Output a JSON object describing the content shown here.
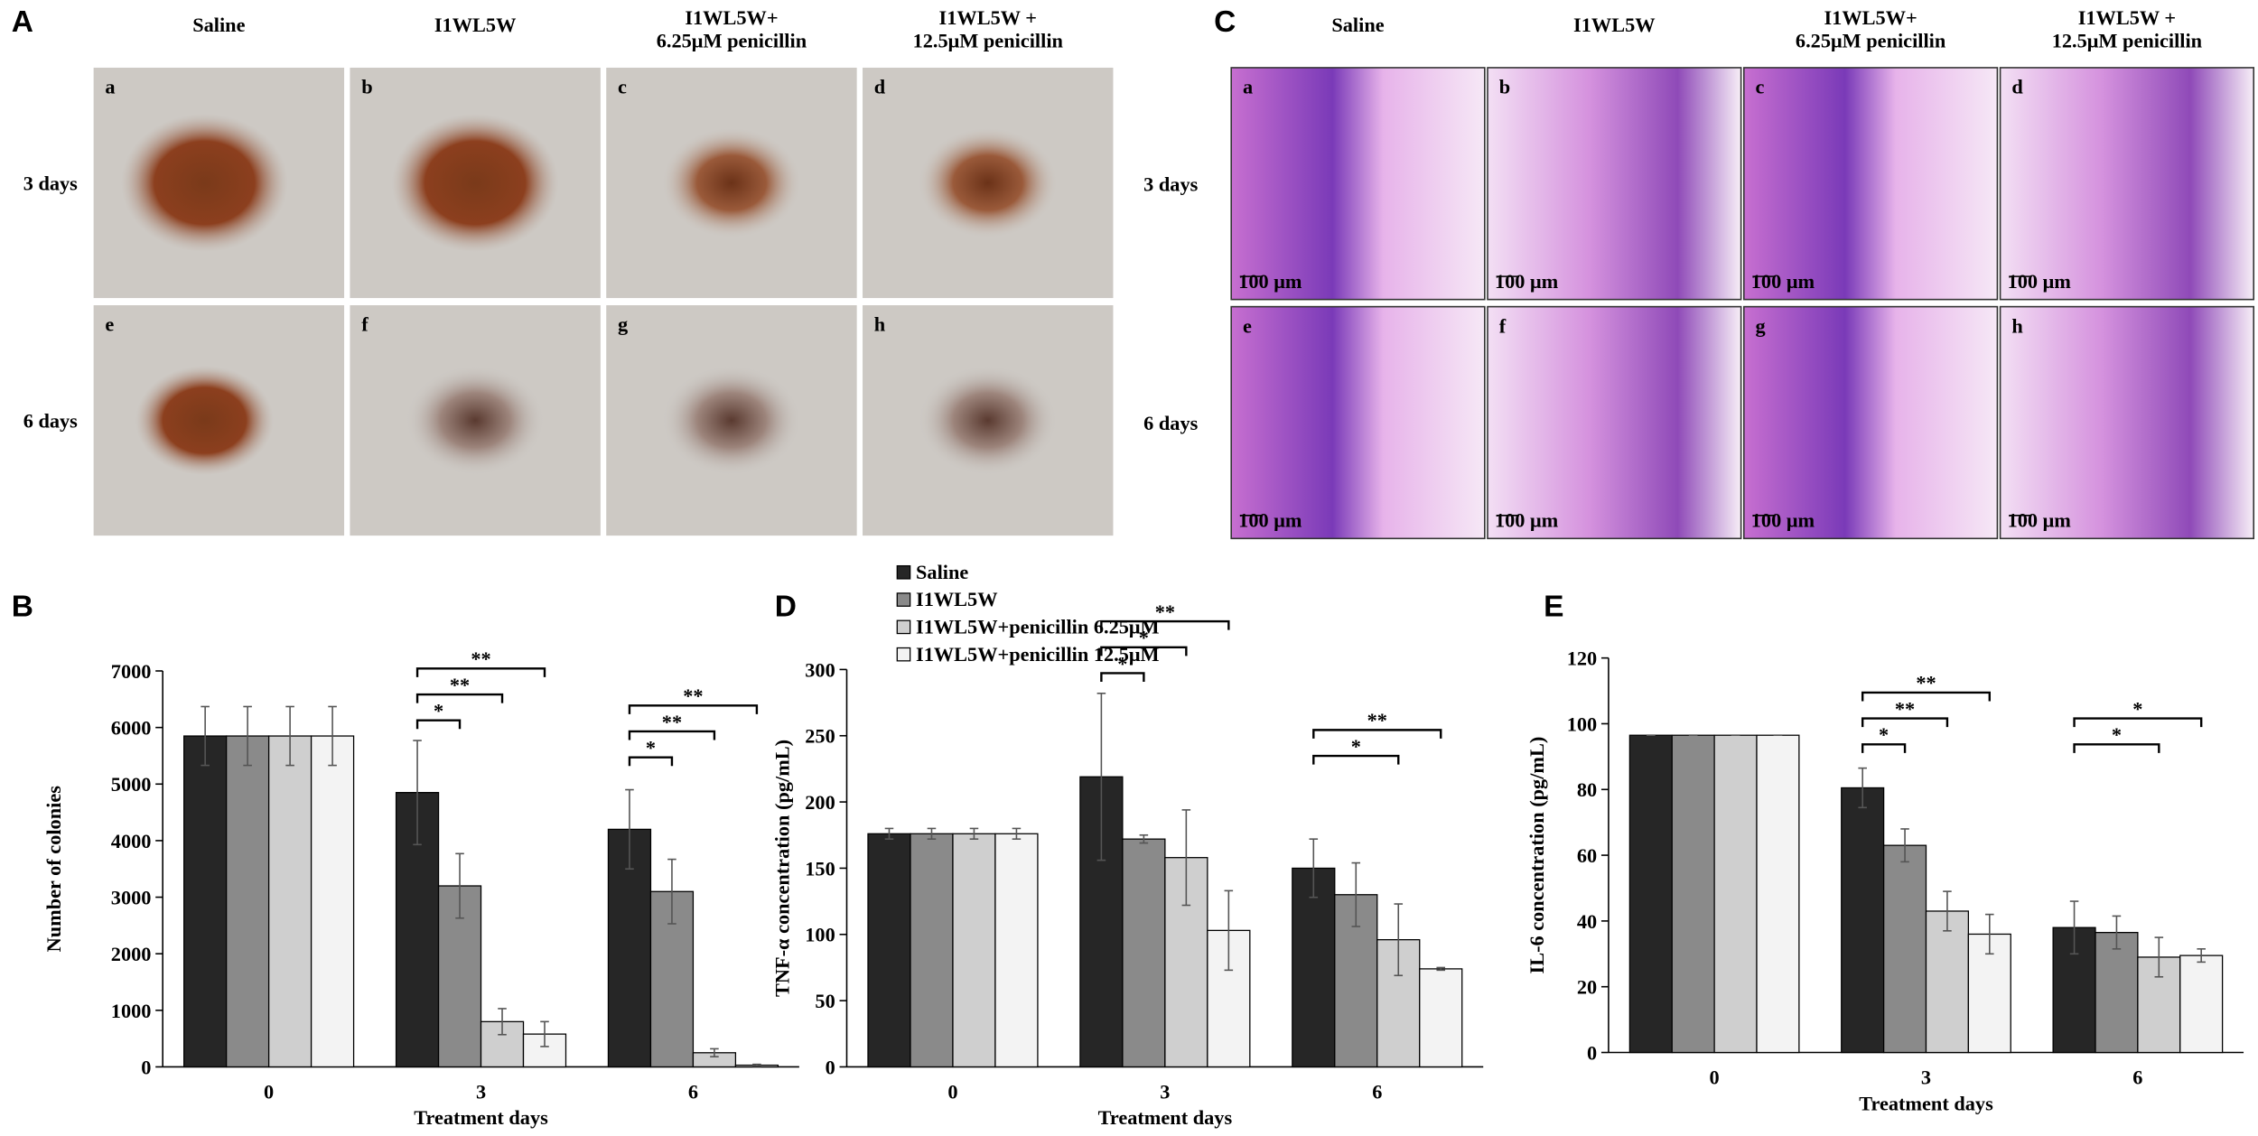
{
  "photo_panels": [
    {
      "label": "A",
      "columns": [
        [
          "Saline"
        ],
        [
          "I1WL5W"
        ],
        [
          "I1WL5W+",
          "6.25μM penicillin"
        ],
        [
          "I1WL5W +",
          "12.5μM penicillin"
        ]
      ],
      "rows": [
        "3 days",
        "6 days"
      ],
      "tiles": [
        "a",
        "b",
        "c",
        "d",
        "e",
        "f",
        "g",
        "h"
      ]
    },
    {
      "label": "C",
      "columns": [
        [
          "Saline"
        ],
        [
          "I1WL5W"
        ],
        [
          "I1WL5W+",
          "6.25μM penicillin"
        ],
        [
          "I1WL5W +",
          "12.5μM penicillin"
        ]
      ],
      "rows": [
        "3 days",
        "6 days"
      ],
      "tiles": [
        "a",
        "b",
        "c",
        "d",
        "e",
        "f",
        "g",
        "h"
      ],
      "scale_bar": "100 μm"
    }
  ],
  "chart_data": [
    {
      "type": "bar",
      "panel_label": "B",
      "x_label": "Treatment days",
      "y_label": "Number of colonies",
      "categories": [
        "0",
        "3",
        "6"
      ],
      "ylim": [
        0,
        7000
      ],
      "yticks": [
        0,
        1000,
        2000,
        3000,
        4000,
        5000,
        6000,
        7000
      ],
      "series": [
        {
          "color": "#262626",
          "values": [
            5850,
            4850,
            4200
          ],
          "errors": [
            520,
            920,
            700
          ]
        },
        {
          "color": "#8a8a8a",
          "values": [
            5850,
            3200,
            3100
          ],
          "errors": [
            520,
            570,
            570
          ]
        },
        {
          "color": "#cfcfcf",
          "values": [
            5850,
            800,
            250
          ],
          "errors": [
            520,
            230,
            70
          ]
        },
        {
          "color": "#f3f3f3",
          "values": [
            5850,
            580,
            30
          ],
          "errors": [
            520,
            220,
            15
          ]
        }
      ],
      "brackets": [
        {
          "group": 1,
          "from": 0,
          "to": 1,
          "label": "*"
        },
        {
          "group": 1,
          "from": 0,
          "to": 2,
          "label": "**"
        },
        {
          "group": 1,
          "from": 0,
          "to": 3,
          "label": "**"
        },
        {
          "group": 2,
          "from": 0,
          "to": 1,
          "label": "*"
        },
        {
          "group": 2,
          "from": 0,
          "to": 2,
          "label": "**"
        },
        {
          "group": 2,
          "from": 0,
          "to": 3,
          "label": "**"
        }
      ]
    },
    {
      "type": "bar",
      "panel_label": "D",
      "x_label": "Treatment days",
      "y_label": "TNF-α concentration  (pg/mL)",
      "categories": [
        "0",
        "3",
        "6"
      ],
      "ylim": [
        0,
        300
      ],
      "yticks": [
        0,
        50,
        100,
        150,
        200,
        250,
        300
      ],
      "legend": "top",
      "series": [
        {
          "name": "Saline",
          "color": "#262626",
          "values": [
            176,
            219,
            150
          ],
          "errors": [
            4,
            63,
            22
          ]
        },
        {
          "name": "I1WL5W",
          "color": "#8a8a8a",
          "values": [
            176,
            172,
            130
          ],
          "errors": [
            4,
            3,
            24
          ]
        },
        {
          "name": "I1WL5W+penicillin 6.25μM",
          "color": "#cfcfcf",
          "values": [
            176,
            158,
            96
          ],
          "errors": [
            4,
            36,
            27
          ]
        },
        {
          "name": "I1WL5W+penicillin 12.5μM",
          "color": "#f3f3f3",
          "values": [
            176,
            103,
            74
          ],
          "errors": [
            4,
            30,
            1
          ]
        }
      ],
      "brackets": [
        {
          "group": 1,
          "from": 0,
          "to": 1,
          "label": "*"
        },
        {
          "group": 1,
          "from": 0,
          "to": 2,
          "label": "*"
        },
        {
          "group": 1,
          "from": 0,
          "to": 3,
          "label": "**"
        },
        {
          "group": 2,
          "from": 0,
          "to": 2,
          "label": "*"
        },
        {
          "group": 2,
          "from": 0,
          "to": 3,
          "label": "**"
        }
      ]
    },
    {
      "type": "bar",
      "panel_label": "E",
      "x_label": "Treatment days",
      "y_label": "IL-6 concentration (pg/mL)",
      "categories": [
        "0",
        "3",
        "6"
      ],
      "ylim": [
        0,
        120
      ],
      "yticks": [
        0,
        20,
        40,
        60,
        80,
        100,
        120
      ],
      "series": [
        {
          "color": "#262626",
          "values": [
            96.5,
            80.5,
            38
          ],
          "errors": [
            0,
            6,
            8
          ]
        },
        {
          "color": "#8a8a8a",
          "values": [
            96.5,
            63,
            36.5
          ],
          "errors": [
            0,
            5,
            5
          ]
        },
        {
          "color": "#cfcfcf",
          "values": [
            96.5,
            43,
            29
          ],
          "errors": [
            0,
            6,
            6
          ]
        },
        {
          "color": "#f3f3f3",
          "values": [
            96.5,
            36,
            29.5
          ],
          "errors": [
            0,
            6,
            2
          ]
        }
      ],
      "brackets": [
        {
          "group": 1,
          "from": 0,
          "to": 1,
          "label": "*"
        },
        {
          "group": 1,
          "from": 0,
          "to": 2,
          "label": "**"
        },
        {
          "group": 1,
          "from": 0,
          "to": 3,
          "label": "**"
        },
        {
          "group": 2,
          "from": 0,
          "to": 2,
          "label": "*"
        },
        {
          "group": 2,
          "from": 0,
          "to": 3,
          "label": "*"
        }
      ]
    }
  ]
}
